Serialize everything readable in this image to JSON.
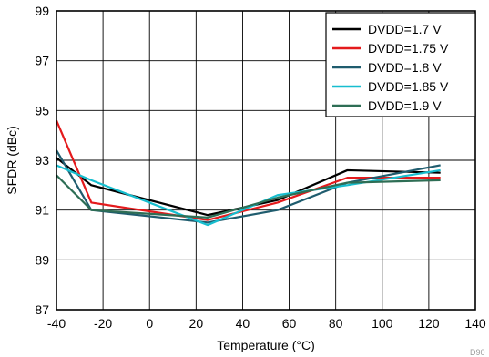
{
  "chart_data": {
    "type": "line",
    "xlabel": "Temperature (°C)",
    "ylabel": "SFDR (dBc)",
    "xlim": [
      -40,
      140
    ],
    "ylim": [
      87,
      99
    ],
    "xticks": [
      -40,
      -20,
      0,
      20,
      40,
      60,
      80,
      100,
      120,
      140
    ],
    "yticks": [
      87,
      89,
      91,
      93,
      95,
      97,
      99
    ],
    "grid": true,
    "legend_position": "top-right",
    "series": [
      {
        "name": "DVDD=1.7 V",
        "color": "#000000",
        "x": [
          -40,
          -25,
          25,
          55,
          85,
          125
        ],
        "y": [
          93.1,
          92.0,
          90.8,
          91.4,
          92.6,
          92.5
        ]
      },
      {
        "name": "DVDD=1.75 V",
        "color": "#e41a1c",
        "x": [
          -40,
          -25,
          25,
          55,
          85,
          125
        ],
        "y": [
          94.6,
          91.3,
          90.6,
          91.3,
          92.3,
          92.3
        ]
      },
      {
        "name": "DVDD=1.8 V",
        "color": "#1f5c6e",
        "x": [
          -40,
          -25,
          25,
          55,
          85,
          125
        ],
        "y": [
          93.4,
          91.0,
          90.5,
          91.0,
          92.1,
          92.8
        ]
      },
      {
        "name": "DVDD=1.85 V",
        "color": "#17becf",
        "x": [
          -40,
          -25,
          25,
          55,
          85,
          125
        ],
        "y": [
          92.8,
          92.2,
          90.4,
          91.6,
          92.0,
          92.6
        ]
      },
      {
        "name": "DVDD=1.9 V",
        "color": "#2e6e55",
        "x": [
          -40,
          -25,
          25,
          55,
          85,
          125
        ],
        "y": [
          92.4,
          91.0,
          90.7,
          91.5,
          92.1,
          92.2
        ]
      }
    ],
    "watermark": "D90"
  }
}
